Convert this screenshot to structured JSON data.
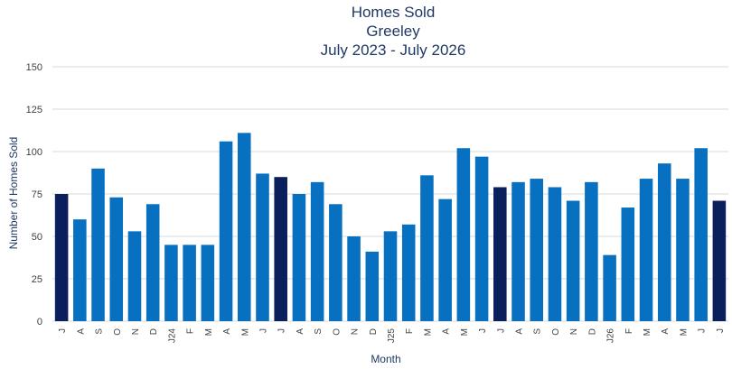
{
  "chart_data": {
    "type": "bar",
    "title": [
      "Homes Sold",
      "Greeley",
      "July 2023 - July 2026"
    ],
    "xlabel": "Month",
    "ylabel": "Number of Homes Sold",
    "ylim": [
      0,
      150
    ],
    "yticks": [
      0,
      25,
      50,
      75,
      100,
      125,
      150
    ],
    "grid": true,
    "legend": "none",
    "categories": [
      "J",
      "A",
      "S",
      "O",
      "N",
      "D",
      "J24",
      "F",
      "M",
      "A",
      "M",
      "J",
      "J",
      "A",
      "S",
      "O",
      "N",
      "D",
      "J25",
      "F",
      "M",
      "A",
      "M",
      "J",
      "J",
      "A",
      "S",
      "O",
      "N",
      "D",
      "J26",
      "F",
      "M",
      "A",
      "M",
      "J",
      "J"
    ],
    "values": [
      75,
      60,
      90,
      73,
      53,
      69,
      45,
      45,
      45,
      106,
      111,
      87,
      85,
      75,
      82,
      69,
      50,
      41,
      53,
      57,
      86,
      72,
      102,
      97,
      79,
      82,
      84,
      79,
      71,
      82,
      39,
      67,
      84,
      93,
      84,
      102,
      71
    ],
    "highlighted": [
      0,
      12,
      24,
      36
    ],
    "colors": {
      "bar": "#0870c0",
      "highlight": "#0b1f5c",
      "grid": "#d9d9d9",
      "text": "#404040",
      "title": "#1f3864",
      "axis_label": "#1f3864"
    }
  }
}
